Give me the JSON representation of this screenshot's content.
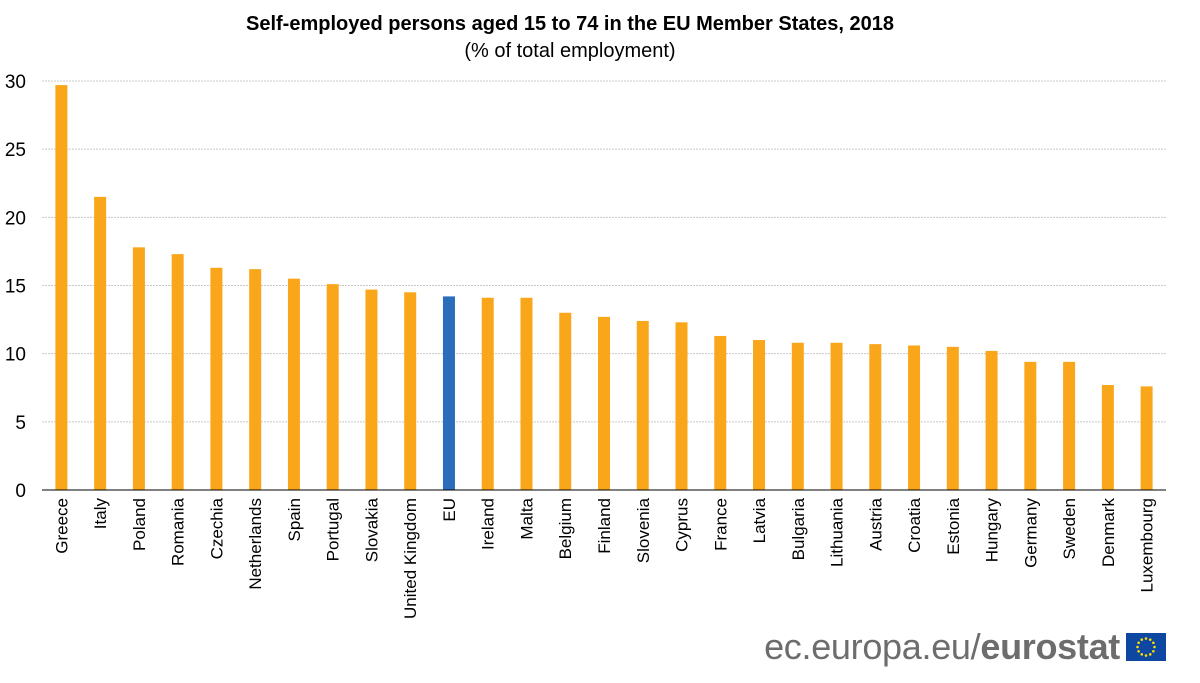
{
  "chart_data": {
    "type": "bar",
    "title": "Self-employed persons aged 15 to 74 in the EU Member States, 2018",
    "subtitle": "(% of total employment)",
    "xlabel": "",
    "ylabel": "",
    "ylim": [
      0,
      30
    ],
    "yticks": [
      0,
      5,
      10,
      15,
      20,
      25,
      30
    ],
    "grid": true,
    "categories": [
      "Greece",
      "Italy",
      "Poland",
      "Romania",
      "Czechia",
      "Netherlands",
      "Spain",
      "Portugal",
      "Slovakia",
      "United Kingdom",
      "EU",
      "Ireland",
      "Malta",
      "Belgium",
      "Finland",
      "Slovenia",
      "Cyprus",
      "France",
      "Latvia",
      "Bulgaria",
      "Lithuania",
      "Austria",
      "Croatia",
      "Estonia",
      "Hungary",
      "Germany",
      "Sweden",
      "Denmark",
      "Luxembourg"
    ],
    "values": [
      29.7,
      21.5,
      17.8,
      17.3,
      16.3,
      16.2,
      15.5,
      15.1,
      14.7,
      14.5,
      14.2,
      14.1,
      14.1,
      13.0,
      12.7,
      12.4,
      12.3,
      11.3,
      11.0,
      10.8,
      10.8,
      10.7,
      10.6,
      10.5,
      10.2,
      9.4,
      9.4,
      7.7,
      7.6
    ],
    "colors": {
      "default": "#faa61a",
      "highlight": "#2a6ebb",
      "highlight_category": "EU"
    }
  },
  "footer": {
    "site": "ec.europa.eu/",
    "brand": "eurostat"
  }
}
